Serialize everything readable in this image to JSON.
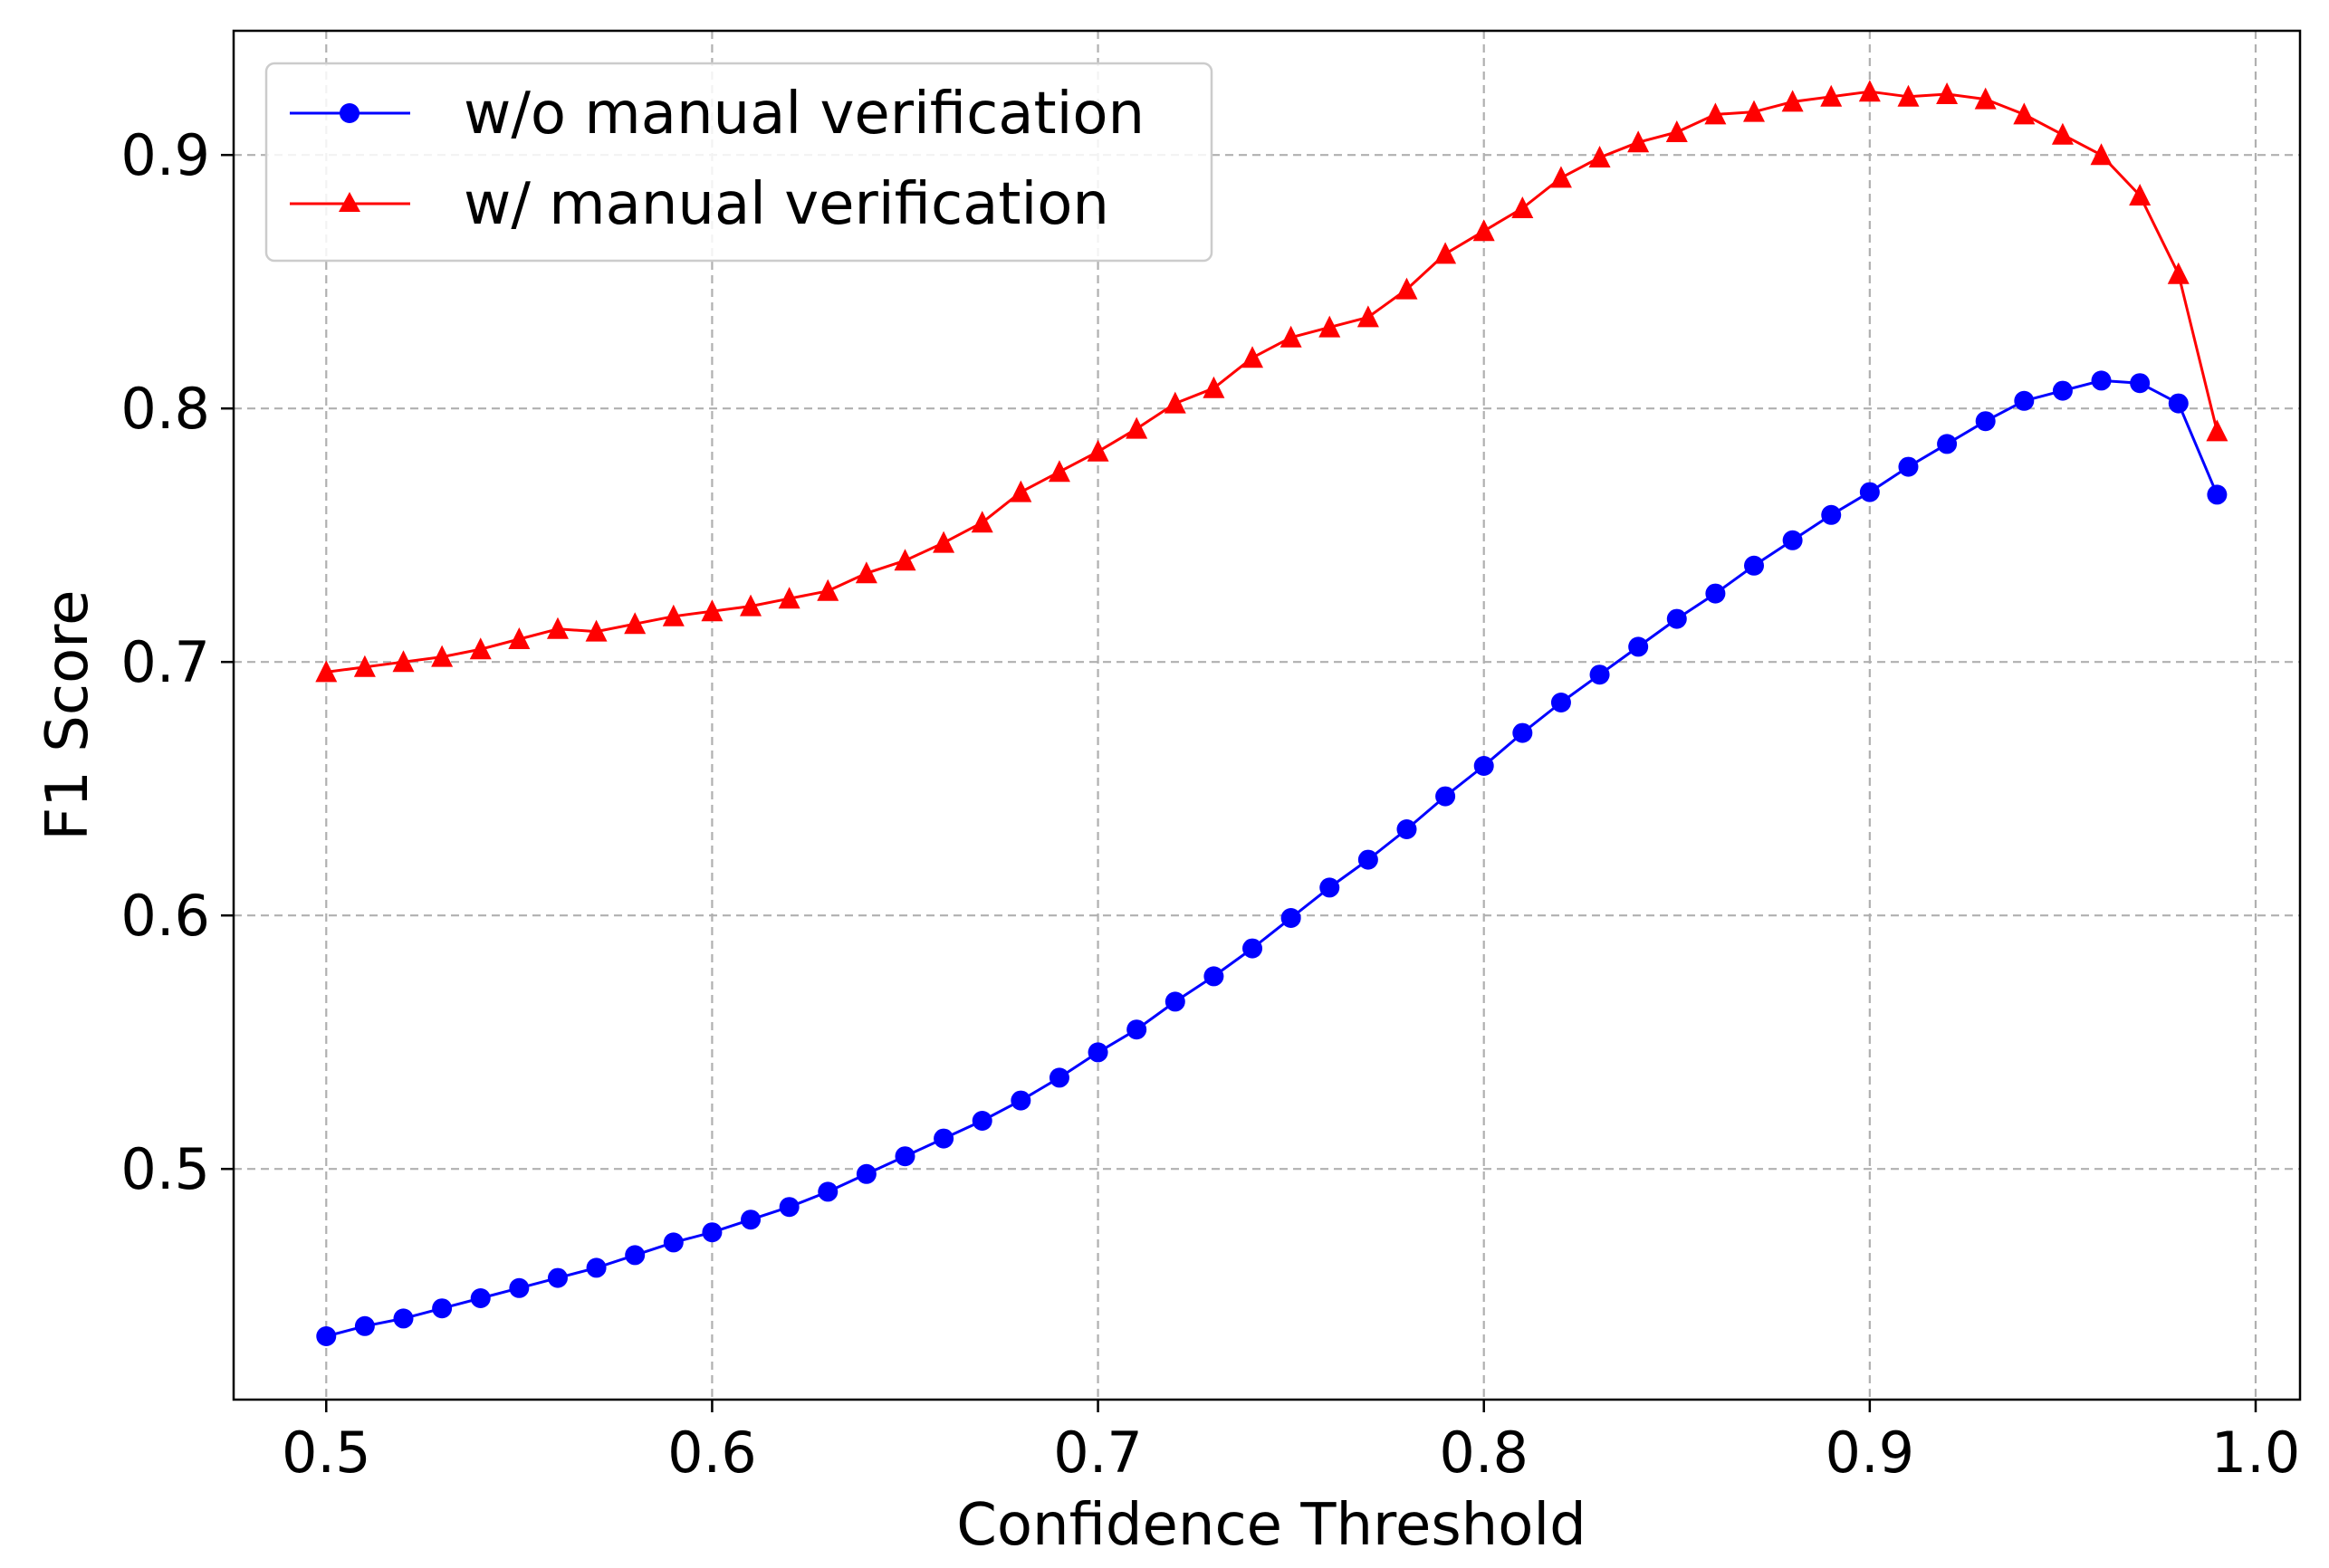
{
  "chart_data": {
    "type": "line",
    "title": "",
    "xlabel": "Confidence Threshold",
    "ylabel": "F1 Score",
    "xlim": [
      0.476,
      1.0115
    ],
    "ylim": [
      0.409,
      0.949
    ],
    "xticks": [
      0.5,
      0.6,
      0.7,
      0.8,
      0.9,
      1.0
    ],
    "xtick_labels": [
      "0.5",
      "0.6",
      "0.7",
      "0.8",
      "0.9",
      "1.0"
    ],
    "yticks": [
      0.5,
      0.6,
      0.7,
      0.8,
      0.9
    ],
    "ytick_labels": [
      "0.5",
      "0.6",
      "0.7",
      "0.8",
      "0.9"
    ],
    "grid": true,
    "legend_position": "upper-left",
    "x": [
      0.5,
      0.51,
      0.52,
      0.53,
      0.54,
      0.55,
      0.56,
      0.57,
      0.58,
      0.59,
      0.6,
      0.61,
      0.62,
      0.63,
      0.64,
      0.65,
      0.66,
      0.67,
      0.68,
      0.69,
      0.7,
      0.71,
      0.72,
      0.73,
      0.74,
      0.75,
      0.76,
      0.77,
      0.78,
      0.79,
      0.8,
      0.81,
      0.82,
      0.83,
      0.84,
      0.85,
      0.86,
      0.87,
      0.88,
      0.89,
      0.9,
      0.91,
      0.92,
      0.93,
      0.94,
      0.95,
      0.96,
      0.97,
      0.98,
      0.99
    ],
    "series": [
      {
        "name": "w/o manual verification",
        "color": "#0000ff",
        "marker": "circle",
        "values": [
          0.434,
          0.438,
          0.441,
          0.445,
          0.449,
          0.453,
          0.457,
          0.461,
          0.466,
          0.471,
          0.475,
          0.48,
          0.485,
          0.491,
          0.498,
          0.505,
          0.512,
          0.519,
          0.527,
          0.536,
          0.546,
          0.555,
          0.566,
          0.576,
          0.587,
          0.599,
          0.611,
          0.622,
          0.634,
          0.647,
          0.659,
          0.672,
          0.684,
          0.695,
          0.706,
          0.717,
          0.727,
          0.738,
          0.748,
          0.758,
          0.767,
          0.777,
          0.786,
          0.795,
          0.803,
          0.807,
          0.811,
          0.81,
          0.802,
          0.766
        ]
      },
      {
        "name": "w/ manual verification",
        "color": "#ff0000",
        "marker": "triangle",
        "values": [
          0.696,
          0.698,
          0.7,
          0.702,
          0.705,
          0.709,
          0.713,
          0.712,
          0.715,
          0.718,
          0.72,
          0.722,
          0.725,
          0.728,
          0.735,
          0.74,
          0.747,
          0.755,
          0.767,
          0.775,
          0.783,
          0.792,
          0.802,
          0.808,
          0.82,
          0.828,
          0.832,
          0.836,
          0.847,
          0.861,
          0.87,
          0.879,
          0.891,
          0.899,
          0.905,
          0.909,
          0.916,
          0.917,
          0.921,
          0.923,
          0.925,
          0.923,
          0.924,
          0.922,
          0.916,
          0.908,
          0.9,
          0.884,
          0.853,
          0.791
        ]
      }
    ]
  }
}
